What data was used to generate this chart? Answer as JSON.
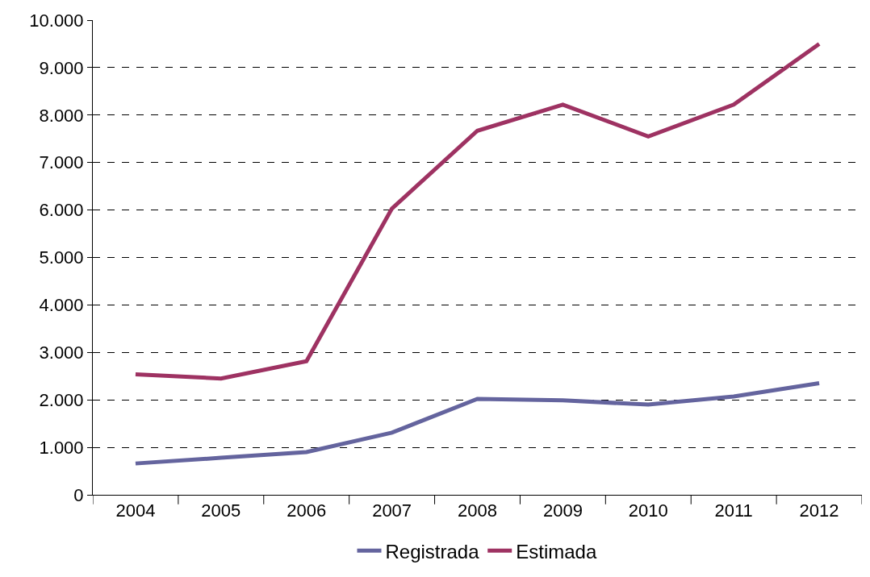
{
  "chart_data": {
    "type": "line",
    "categories": [
      "2004",
      "2005",
      "2006",
      "2007",
      "2008",
      "2009",
      "2010",
      "2011",
      "2012"
    ],
    "series": [
      {
        "name": "Registrada",
        "color": "#64649e",
        "values": [
          660,
          780,
          900,
          1310,
          2020,
          1990,
          1900,
          2070,
          2350
        ]
      },
      {
        "name": "Estimada",
        "color": "#9e3262",
        "values": [
          2540,
          2450,
          2815,
          6030,
          7670,
          8220,
          7550,
          8220,
          9500
        ]
      }
    ],
    "ylim": [
      0,
      10000
    ],
    "yticks": [
      0,
      {
        "value": 1000,
        "label": "1.000"
      },
      {
        "value": 2000,
        "label": "2.000"
      },
      {
        "value": 3000,
        "label": "3.000"
      },
      {
        "value": 4000,
        "label": "4.000"
      },
      {
        "value": 5000,
        "label": "5.000"
      },
      {
        "value": 6000,
        "label": "6.000"
      },
      {
        "value": 7000,
        "label": "7.000"
      },
      {
        "value": 8000,
        "label": "8.000"
      },
      {
        "value": 9000,
        "label": "9.000"
      },
      {
        "value": 10000,
        "label": "10.000"
      }
    ],
    "grid": "y",
    "legend": "bottom",
    "marker": "none",
    "line_style": "solid"
  }
}
